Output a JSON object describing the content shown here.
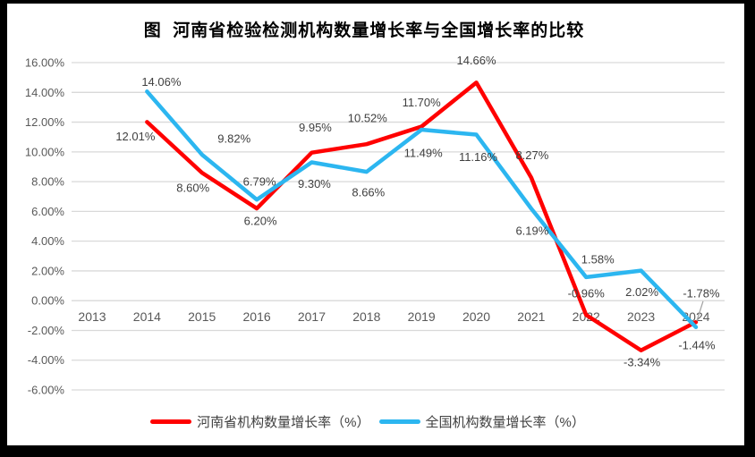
{
  "chart_data": {
    "type": "line",
    "title": "图  河南省检验检测机构数量增长率与全国增长率的比较",
    "categories": [
      "2013",
      "2014",
      "2015",
      "2016",
      "2017",
      "2018",
      "2019",
      "2020",
      "2021",
      "2022",
      "2023",
      "2024"
    ],
    "y_axis": {
      "min": -6,
      "max": 16,
      "step": 2,
      "tick_labels": [
        "16.00%",
        "14.00%",
        "12.00%",
        "10.00%",
        "8.00%",
        "6.00%",
        "4.00%",
        "2.00%",
        "0.00%",
        "-2.00%",
        "-4.00%",
        "-6.00%"
      ]
    },
    "grid": true,
    "legend_position": "bottom",
    "series": [
      {
        "name": "河南省机构数量增长率（%）",
        "color": "#FF0000",
        "values": [
          null,
          12.01,
          8.6,
          6.2,
          9.95,
          10.52,
          11.7,
          14.66,
          8.27,
          -0.96,
          -3.34,
          -1.44
        ],
        "labels": [
          null,
          "12.01%",
          "8.60%",
          "6.20%",
          "9.95%",
          "10.52%",
          "11.70%",
          "14.66%",
          "8.27%",
          "-0.96%",
          "-3.34%",
          "-1.44%"
        ]
      },
      {
        "name": "全国机构数量增长率（%）",
        "color": "#2CB6F0",
        "values": [
          null,
          14.06,
          9.82,
          6.79,
          9.3,
          8.66,
          11.49,
          11.16,
          6.19,
          1.58,
          2.02,
          -1.78
        ],
        "labels": [
          null,
          "14.06%",
          "9.82%",
          "6.79%",
          "9.30%",
          "8.66%",
          "11.49%",
          "11.16%",
          "6.19%",
          "1.58%",
          "2.02%",
          "-1.78%"
        ]
      }
    ],
    "layout": {
      "label_offsets": [
        [
          null,
          [
            -13,
            16
          ],
          [
            -10,
            17
          ],
          [
            4,
            14
          ],
          [
            4,
            -28
          ],
          [
            1,
            -29
          ],
          [
            0,
            -27
          ],
          [
            0,
            -25
          ],
          [
            1,
            -25
          ],
          [
            0,
            -24
          ],
          [
            1,
            13
          ],
          [
            1,
            26
          ]
        ],
        [
          null,
          [
            16,
            -11
          ],
          [
            36,
            -18
          ],
          [
            3,
            -20
          ],
          [
            3,
            24
          ],
          [
            2,
            23
          ],
          [
            2,
            26
          ],
          [
            2,
            25
          ],
          [
            1,
            25
          ],
          [
            13,
            -20
          ],
          [
            1,
            24
          ],
          [
            6,
            -38
          ]
        ]
      ],
      "leader": {
        "series": 1,
        "index": 11
      }
    }
  },
  "colors": {
    "grid": "#D9D9D9",
    "axis_text": "#595959",
    "label_text": "#404040",
    "leader": "#A6A6A6",
    "frame": "#000000",
    "background": "#FFFFFF"
  }
}
